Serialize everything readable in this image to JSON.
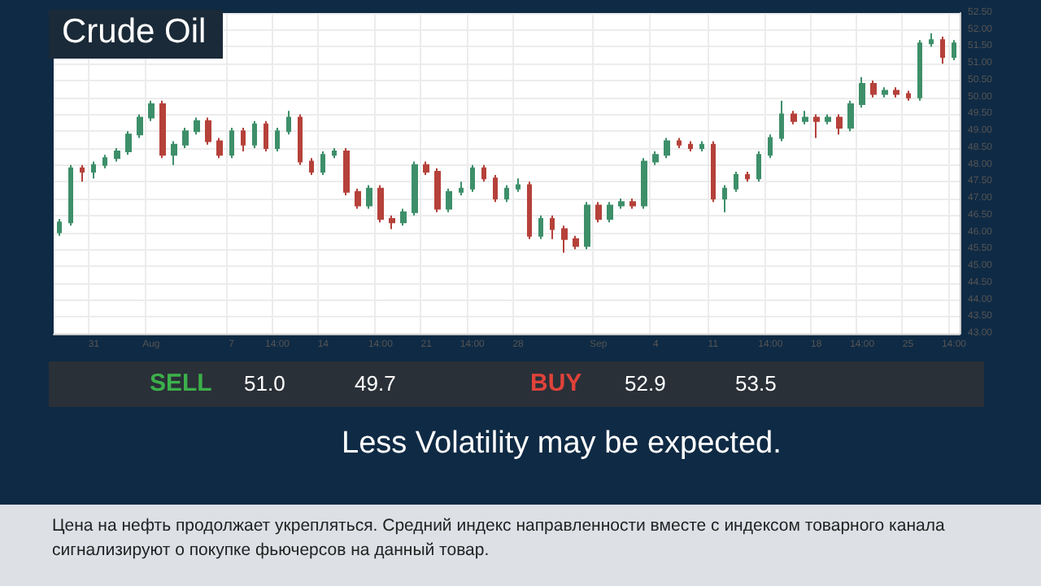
{
  "chart_data": {
    "type": "candlestick",
    "title": "Crude Oil",
    "categories": [
      null,
      null,
      null,
      "31",
      null,
      null,
      null,
      null,
      "Aug",
      null,
      null,
      null,
      null,
      null,
      null,
      "7",
      null,
      null,
      null,
      "14:00",
      null,
      null,
      null,
      "14",
      null,
      null,
      null,
      null,
      "14:00",
      null,
      null,
      null,
      "21",
      null,
      null,
      null,
      "14:00",
      null,
      null,
      null,
      "28",
      null,
      null,
      null,
      null,
      null,
      null,
      "Sep",
      null,
      null,
      null,
      null,
      "4",
      null,
      null,
      null,
      null,
      "11",
      null,
      null,
      null,
      null,
      "14:00",
      null,
      null,
      null,
      "18",
      null,
      null,
      null,
      "14:00",
      null,
      null,
      null,
      "25",
      null,
      null,
      null,
      "14:00"
    ],
    "ohlc": [
      [
        46.0,
        46.4,
        45.9,
        46.3
      ],
      [
        46.3,
        48.0,
        46.2,
        47.9
      ],
      [
        47.9,
        48.0,
        47.5,
        47.8
      ],
      [
        47.8,
        48.1,
        47.6,
        48.0
      ],
      [
        48.0,
        48.3,
        47.9,
        48.2
      ],
      [
        48.2,
        48.5,
        48.1,
        48.4
      ],
      [
        48.4,
        49.0,
        48.3,
        48.9
      ],
      [
        48.9,
        49.5,
        48.8,
        49.4
      ],
      [
        49.4,
        49.9,
        49.3,
        49.8
      ],
      [
        49.8,
        49.9,
        48.2,
        48.3
      ],
      [
        48.3,
        48.7,
        48.0,
        48.6
      ],
      [
        48.6,
        49.1,
        48.5,
        49.0
      ],
      [
        49.0,
        49.4,
        48.9,
        49.3
      ],
      [
        49.3,
        49.4,
        48.6,
        48.7
      ],
      [
        48.7,
        48.8,
        48.2,
        48.3
      ],
      [
        48.3,
        49.1,
        48.2,
        49.0
      ],
      [
        49.0,
        49.1,
        48.4,
        48.6
      ],
      [
        48.6,
        49.3,
        48.5,
        49.2
      ],
      [
        49.2,
        49.3,
        48.4,
        48.5
      ],
      [
        48.5,
        49.1,
        48.4,
        49.0
      ],
      [
        49.0,
        49.6,
        48.9,
        49.4
      ],
      [
        49.4,
        49.5,
        48.0,
        48.1
      ],
      [
        48.1,
        48.2,
        47.7,
        47.8
      ],
      [
        47.8,
        48.4,
        47.7,
        48.3
      ],
      [
        48.3,
        48.5,
        48.2,
        48.4
      ],
      [
        48.4,
        48.5,
        47.1,
        47.2
      ],
      [
        47.2,
        47.3,
        46.7,
        46.8
      ],
      [
        46.8,
        47.4,
        46.7,
        47.3
      ],
      [
        47.3,
        47.4,
        46.3,
        46.4
      ],
      [
        46.4,
        46.5,
        46.1,
        46.3
      ],
      [
        46.3,
        46.7,
        46.2,
        46.6
      ],
      [
        46.6,
        48.1,
        46.5,
        48.0
      ],
      [
        48.0,
        48.1,
        47.7,
        47.8
      ],
      [
        47.8,
        47.9,
        46.6,
        46.7
      ],
      [
        46.7,
        47.3,
        46.6,
        47.2
      ],
      [
        47.2,
        47.5,
        47.1,
        47.3
      ],
      [
        47.3,
        48.0,
        47.2,
        47.9
      ],
      [
        47.9,
        48.0,
        47.5,
        47.6
      ],
      [
        47.6,
        47.7,
        46.9,
        47.0
      ],
      [
        47.0,
        47.4,
        46.9,
        47.3
      ],
      [
        47.3,
        47.6,
        47.2,
        47.4
      ],
      [
        47.4,
        47.5,
        45.8,
        45.9
      ],
      [
        45.9,
        46.5,
        45.8,
        46.4
      ],
      [
        46.4,
        46.5,
        45.8,
        46.1
      ],
      [
        46.1,
        46.2,
        45.4,
        45.8
      ],
      [
        45.8,
        45.9,
        45.5,
        45.6
      ],
      [
        45.6,
        46.9,
        45.5,
        46.8
      ],
      [
        46.8,
        46.9,
        46.3,
        46.4
      ],
      [
        46.4,
        46.9,
        46.3,
        46.8
      ],
      [
        46.8,
        47.0,
        46.7,
        46.9
      ],
      [
        46.9,
        47.0,
        46.7,
        46.8
      ],
      [
        46.8,
        48.2,
        46.7,
        48.1
      ],
      [
        48.1,
        48.4,
        48.0,
        48.3
      ],
      [
        48.3,
        48.8,
        48.2,
        48.7
      ],
      [
        48.7,
        48.8,
        48.5,
        48.6
      ],
      [
        48.6,
        48.7,
        48.4,
        48.5
      ],
      [
        48.5,
        48.7,
        48.4,
        48.6
      ],
      [
        48.6,
        48.7,
        46.9,
        47.0
      ],
      [
        47.0,
        47.4,
        46.6,
        47.3
      ],
      [
        47.3,
        47.8,
        47.2,
        47.7
      ],
      [
        47.7,
        47.8,
        47.5,
        47.6
      ],
      [
        47.6,
        48.4,
        47.5,
        48.3
      ],
      [
        48.3,
        48.9,
        48.2,
        48.8
      ],
      [
        48.8,
        49.9,
        48.7,
        49.5
      ],
      [
        49.5,
        49.6,
        49.2,
        49.3
      ],
      [
        49.3,
        49.6,
        49.2,
        49.4
      ],
      [
        49.4,
        49.5,
        48.8,
        49.3
      ],
      [
        49.3,
        49.5,
        49.2,
        49.4
      ],
      [
        49.4,
        49.5,
        48.9,
        49.1
      ],
      [
        49.1,
        49.9,
        49.0,
        49.8
      ],
      [
        49.8,
        50.6,
        49.7,
        50.4
      ],
      [
        50.4,
        50.5,
        50.0,
        50.1
      ],
      [
        50.1,
        50.3,
        50.0,
        50.2
      ],
      [
        50.2,
        50.3,
        50.0,
        50.1
      ],
      [
        50.1,
        50.2,
        49.9,
        50.0
      ],
      [
        50.0,
        51.7,
        49.9,
        51.6
      ],
      [
        51.6,
        51.9,
        51.5,
        51.7
      ],
      [
        51.7,
        51.8,
        51.0,
        51.2
      ],
      [
        51.2,
        51.7,
        51.1,
        51.6
      ]
    ],
    "colors": [
      "#3d8f6a",
      "#3d8f6a",
      "#b5413a",
      "#3d8f6a",
      "#3d8f6a",
      "#3d8f6a",
      "#3d8f6a",
      "#3d8f6a",
      "#3d8f6a",
      "#b5413a",
      "#3d8f6a",
      "#3d8f6a",
      "#3d8f6a",
      "#b5413a",
      "#b5413a",
      "#3d8f6a",
      "#b5413a",
      "#3d8f6a",
      "#b5413a",
      "#3d8f6a",
      "#3d8f6a",
      "#b5413a",
      "#b5413a",
      "#3d8f6a",
      "#3d8f6a",
      "#b5413a",
      "#b5413a",
      "#3d8f6a",
      "#b5413a",
      "#b5413a",
      "#3d8f6a",
      "#3d8f6a",
      "#b5413a",
      "#b5413a",
      "#3d8f6a",
      "#3d8f6a",
      "#3d8f6a",
      "#b5413a",
      "#b5413a",
      "#3d8f6a",
      "#3d8f6a",
      "#b5413a",
      "#3d8f6a",
      "#b5413a",
      "#b5413a",
      "#b5413a",
      "#3d8f6a",
      "#b5413a",
      "#3d8f6a",
      "#3d8f6a",
      "#b5413a",
      "#3d8f6a",
      "#3d8f6a",
      "#3d8f6a",
      "#b5413a",
      "#b5413a",
      "#3d8f6a",
      "#b5413a",
      "#3d8f6a",
      "#3d8f6a",
      "#b5413a",
      "#3d8f6a",
      "#3d8f6a",
      "#3d8f6a",
      "#b5413a",
      "#3d8f6a",
      "#b5413a",
      "#3d8f6a",
      "#b5413a",
      "#3d8f6a",
      "#3d8f6a",
      "#b5413a",
      "#3d8f6a",
      "#b5413a",
      "#b5413a",
      "#3d8f6a",
      "#3d8f6a",
      "#b5413a",
      "#3d8f6a"
    ],
    "ylim": [
      43,
      52.5
    ],
    "yticks": [
      {
        "value": 43,
        "label": "43.00"
      },
      {
        "value": 43.5,
        "label": "43.50"
      },
      {
        "value": 44,
        "label": "44.00"
      },
      {
        "value": 44.5,
        "label": "44.50"
      },
      {
        "value": 45,
        "label": "45.00"
      },
      {
        "value": 45.5,
        "label": "45.50"
      },
      {
        "value": 46,
        "label": "46.00"
      },
      {
        "value": 46.5,
        "label": "46.50"
      },
      {
        "value": 47,
        "label": "47.00"
      },
      {
        "value": 47.5,
        "label": "47.50"
      },
      {
        "value": 48,
        "label": "48.00"
      },
      {
        "value": 48.5,
        "label": "48.50"
      },
      {
        "value": 49,
        "label": "49.00"
      },
      {
        "value": 49.5,
        "label": "49.50"
      },
      {
        "value": 50,
        "label": "50.00"
      },
      {
        "value": 50.5,
        "label": "50.50"
      },
      {
        "value": 51,
        "label": "51.00"
      },
      {
        "value": 51.5,
        "label": "51.50"
      },
      {
        "value": 52,
        "label": "52.00"
      },
      {
        "value": 52.5,
        "label": "52.50"
      }
    ],
    "grid": true,
    "annotations": [
      "SELL",
      "51.0",
      "49.7",
      "BUY",
      "52.9",
      "53.5",
      "Less Volatility may be expected.",
      "Цена на нефть продолжает укрепляться. Средний индекс направленности вместе с индексом товарного канала сигнализируют о покупке фьючерсов на данный товар."
    ]
  }
}
